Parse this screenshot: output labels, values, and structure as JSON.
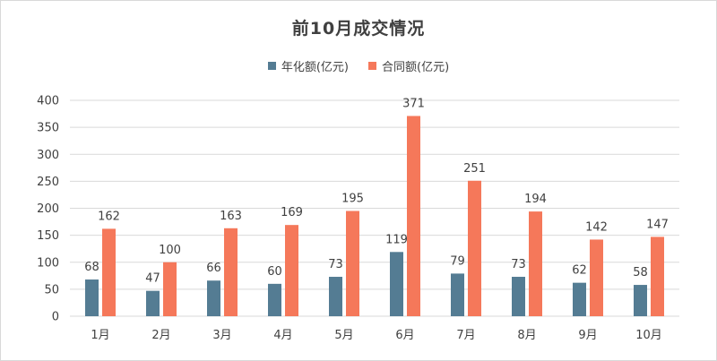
{
  "chart_data": {
    "type": "bar",
    "title": "前10月成交情况",
    "categories": [
      "1月",
      "2月",
      "3月",
      "4月",
      "5月",
      "6月",
      "7月",
      "8月",
      "9月",
      "10月"
    ],
    "series": [
      {
        "name": "年化额(亿元)",
        "color": "#547c93",
        "values": [
          68,
          47,
          66,
          60,
          73,
          119,
          79,
          73,
          62,
          58
        ]
      },
      {
        "name": "合同额(亿元)",
        "color": "#f5785a",
        "values": [
          162,
          100,
          163,
          169,
          195,
          371,
          251,
          194,
          142,
          147
        ]
      }
    ],
    "ylim": [
      0,
      400
    ],
    "yticks": [
      0,
      50,
      100,
      150,
      200,
      250,
      300,
      350,
      400
    ],
    "grid": true,
    "legend_position": "top-center",
    "data_labels": true
  }
}
